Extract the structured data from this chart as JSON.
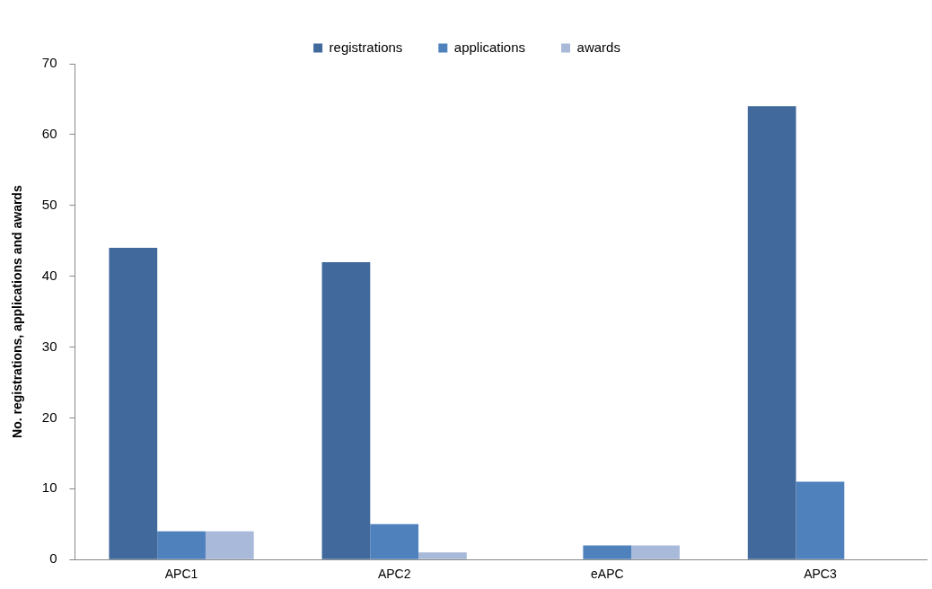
{
  "chart_data": {
    "type": "bar",
    "ylabel": "No. registrations, applications and awards",
    "categories": [
      "APC1",
      "APC2",
      "eAPC",
      "APC3"
    ],
    "series": [
      {
        "name": "registrations",
        "color": "#41699c",
        "values": [
          44,
          42,
          0,
          64
        ]
      },
      {
        "name": "applications",
        "color": "#4f81bd",
        "values": [
          4,
          5,
          2,
          11
        ]
      },
      {
        "name": "awards",
        "color": "#a9b9d9",
        "values": [
          4,
          1,
          2,
          0
        ]
      }
    ],
    "ylim": [
      0,
      70
    ],
    "yticks": [
      0,
      10,
      20,
      30,
      40,
      50,
      60,
      70
    ],
    "grid": false,
    "legend": "top"
  }
}
